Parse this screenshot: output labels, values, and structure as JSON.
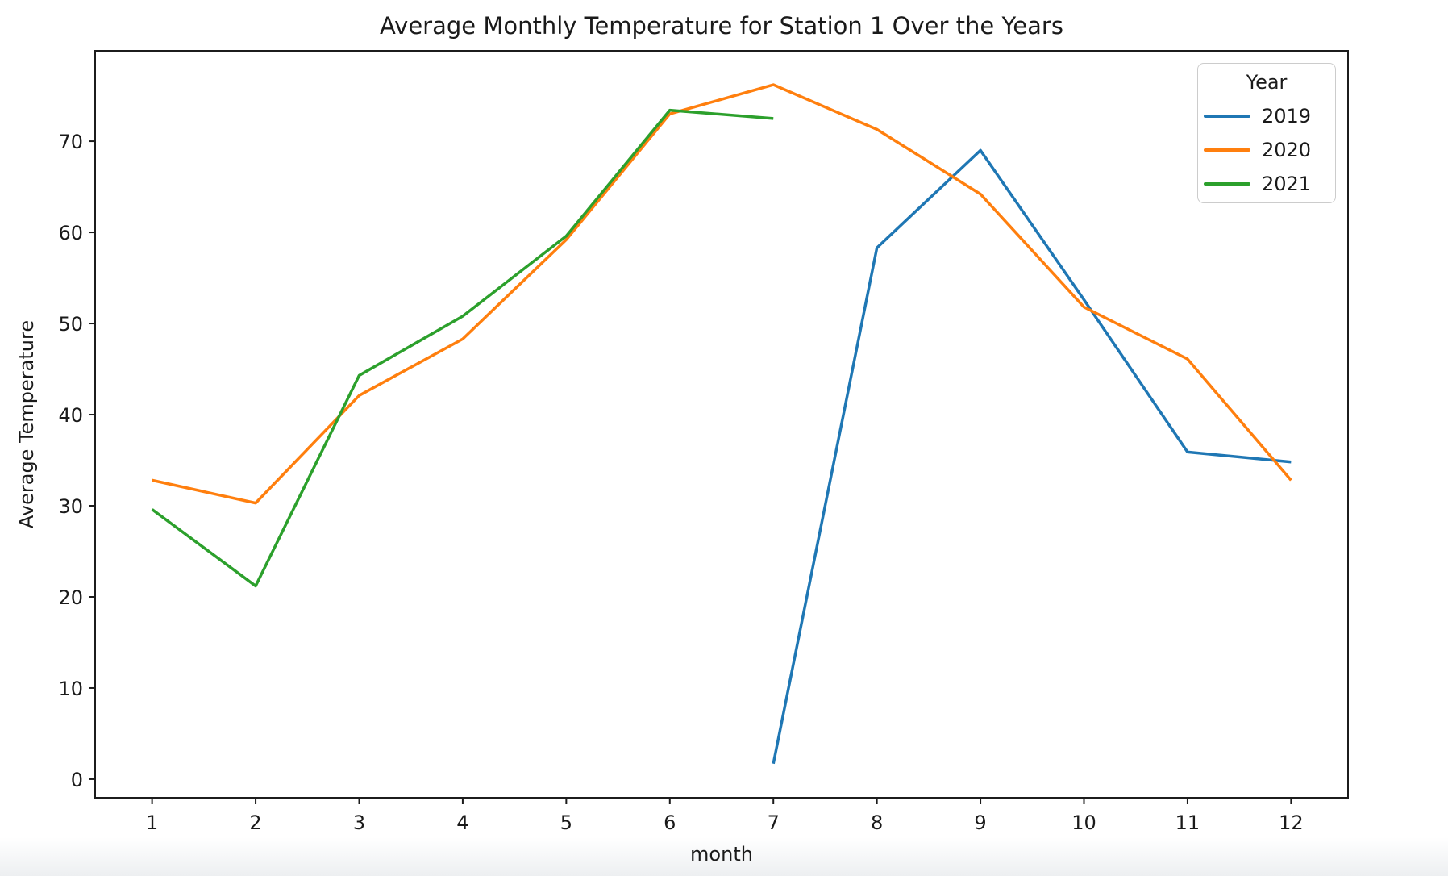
{
  "figure": {
    "background": "#ffffff",
    "window_edge_band_color": "#edeff1",
    "spine_color": "#1c1c1c",
    "text_color": "#1a1a1a"
  },
  "chart_data": {
    "type": "line",
    "title": "Average Monthly Temperature for Station 1 Over the Years",
    "xlabel": "month",
    "ylabel": "Average Temperature",
    "grid": false,
    "xlim": [
      0.45,
      12.55
    ],
    "ylim": [
      -2.04,
      79.92
    ],
    "xticks": [
      1,
      2,
      3,
      4,
      5,
      6,
      7,
      8,
      9,
      10,
      11,
      12
    ],
    "yticks": [
      0,
      10,
      20,
      30,
      40,
      50,
      60,
      70
    ],
    "legend": {
      "title": "Year",
      "position": "upper right"
    },
    "series": [
      {
        "name": "2019",
        "color": "#1f77b4",
        "x": [
          7,
          8,
          9,
          10,
          11,
          12
        ],
        "y": [
          1.7,
          58.3,
          69.0,
          52.6,
          35.9,
          34.8
        ]
      },
      {
        "name": "2020",
        "color": "#ff7f0e",
        "x": [
          1,
          2,
          3,
          4,
          5,
          6,
          7,
          8,
          9,
          10,
          11,
          12
        ],
        "y": [
          32.8,
          30.3,
          42.1,
          48.3,
          59.2,
          73.0,
          76.2,
          71.3,
          64.2,
          51.8,
          46.1,
          32.8
        ]
      },
      {
        "name": "2021",
        "color": "#2ca02c",
        "x": [
          1,
          2,
          3,
          4,
          5,
          6,
          7
        ],
        "y": [
          29.6,
          21.2,
          44.3,
          50.8,
          59.6,
          73.4,
          72.5
        ]
      }
    ]
  }
}
